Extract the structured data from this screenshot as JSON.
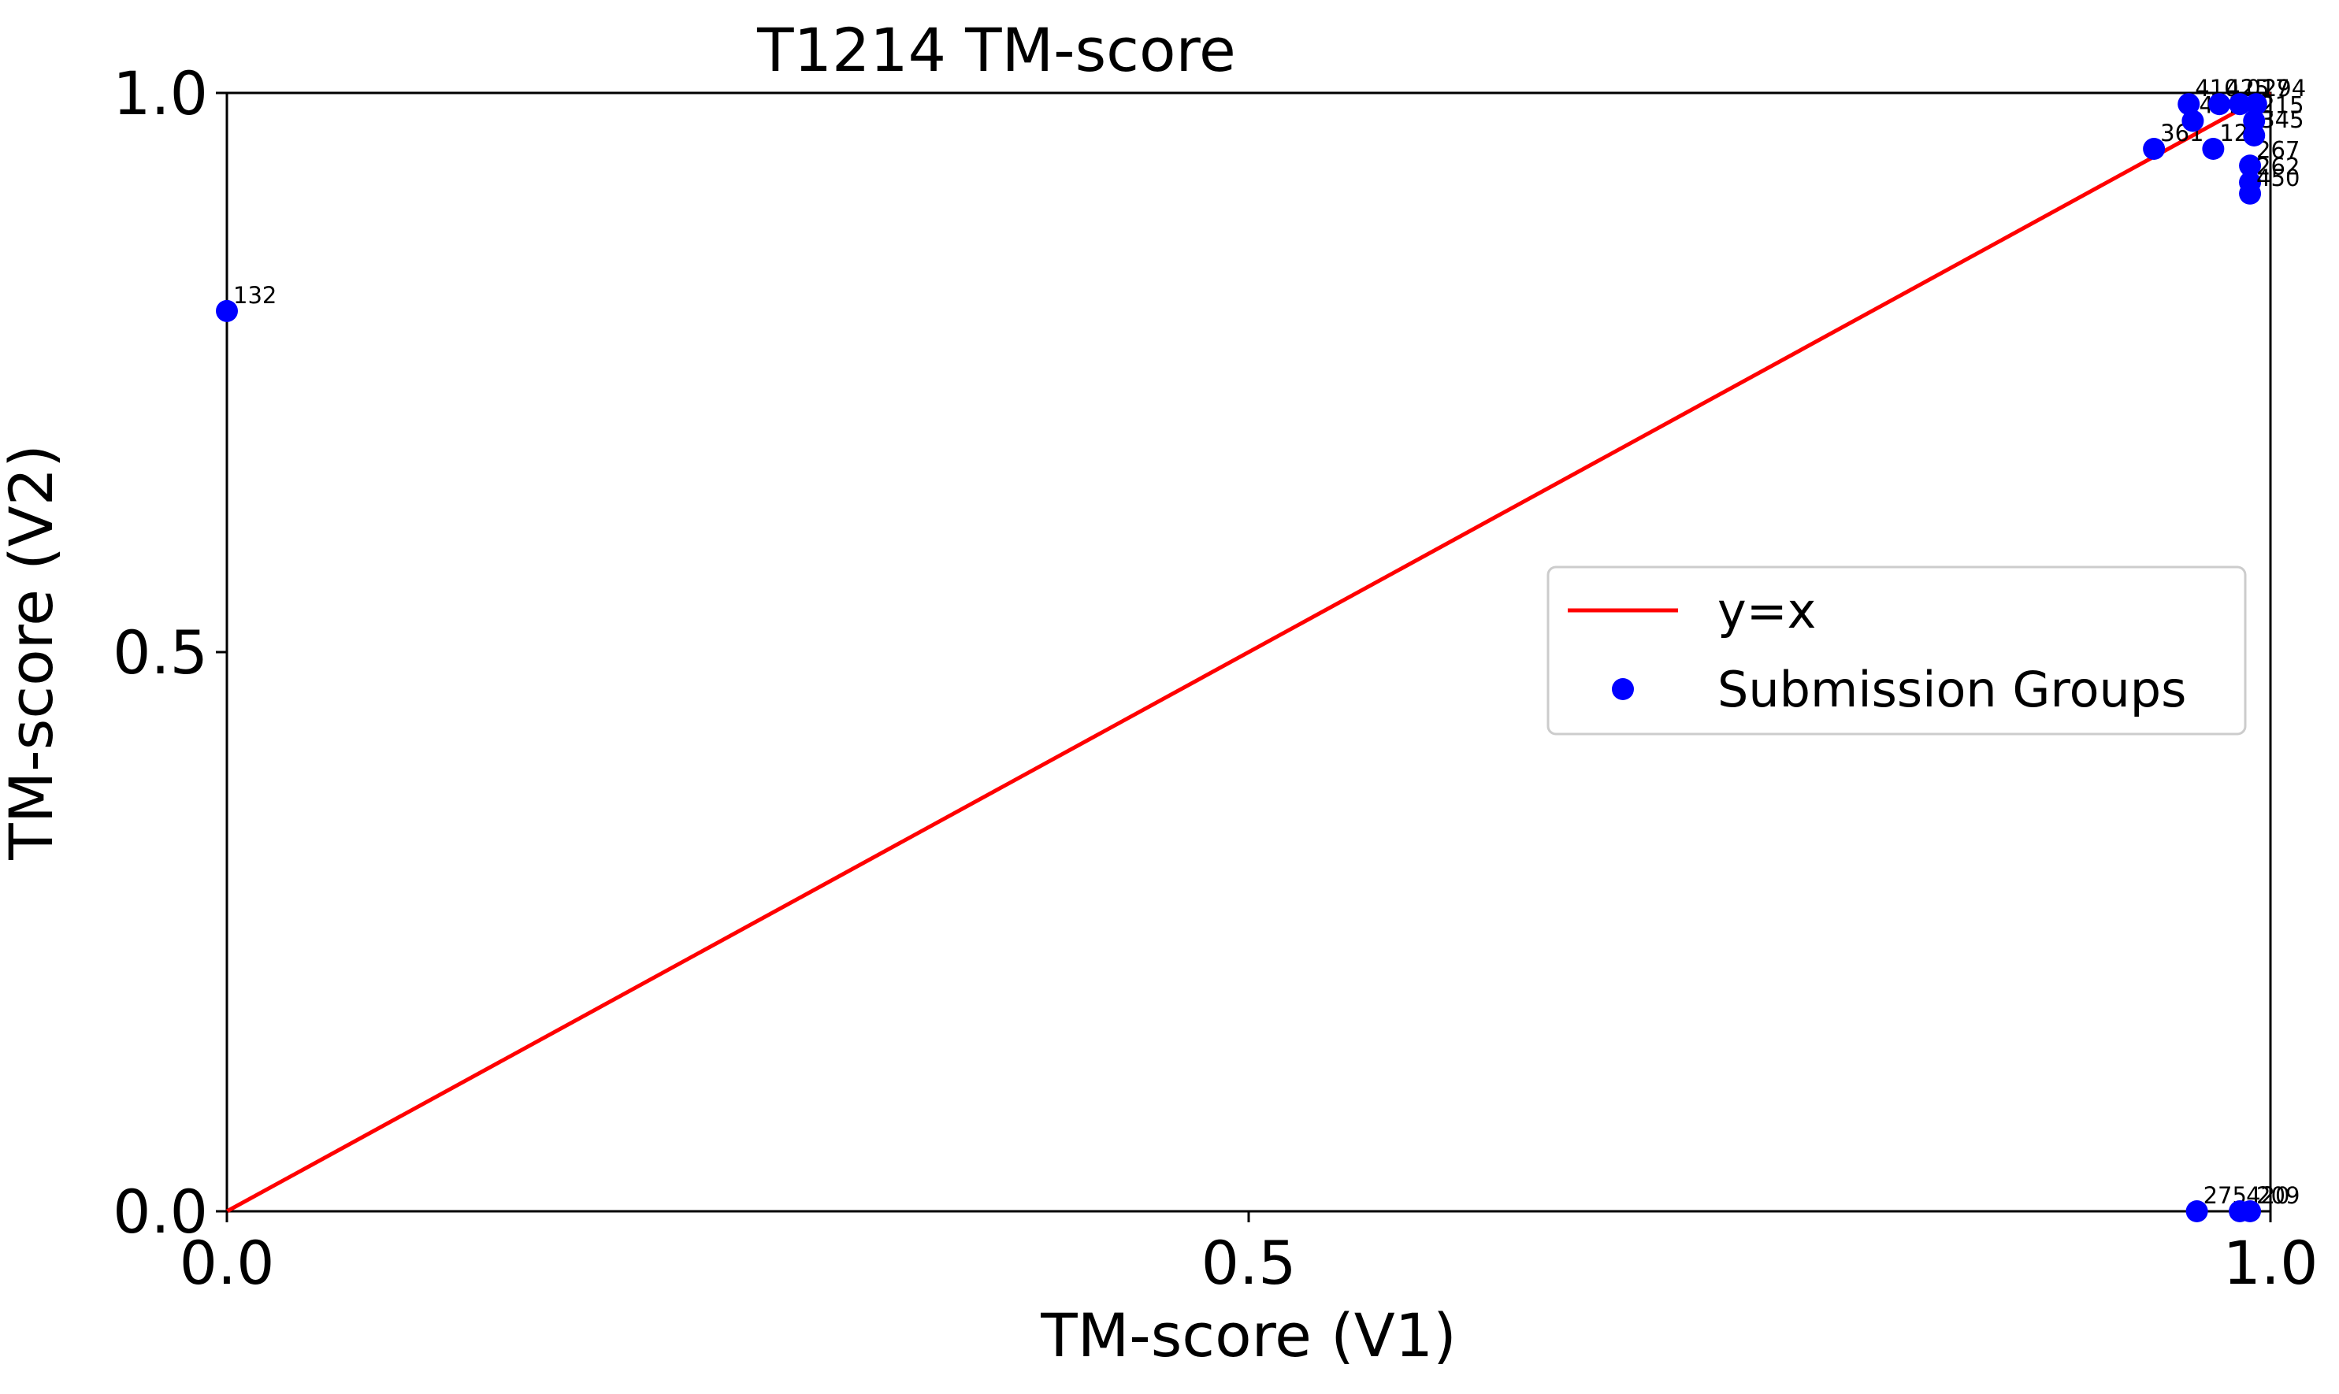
{
  "chart_data": {
    "type": "scatter",
    "title": "T1214 TM-score",
    "xlabel": "TM-score (V1)",
    "ylabel": "TM-score (V2)",
    "xlim": [
      0.0,
      1.0
    ],
    "ylim": [
      0.0,
      1.0
    ],
    "xticks": [
      "0.0",
      "0.5",
      "1.0"
    ],
    "yticks": [
      "0.0",
      "0.5",
      "1.0"
    ],
    "grid": false,
    "legend": {
      "placement": "center-right",
      "entries": [
        {
          "label": "y=x",
          "kind": "line",
          "color": "#ff0000"
        },
        {
          "label": "Submission Groups",
          "kind": "marker",
          "color": "#0000ff"
        }
      ]
    },
    "reference_line": {
      "name": "y=x",
      "color": "#ff0000",
      "points": [
        [
          0.0,
          0.0
        ],
        [
          1.0,
          1.0
        ]
      ]
    },
    "series": [
      {
        "name": "Submission Groups",
        "color": "#0000ff",
        "points": [
          {
            "x": 0.0,
            "y": 0.805,
            "label": "132"
          },
          {
            "x": 0.943,
            "y": 0.95,
            "label": "361"
          },
          {
            "x": 0.962,
            "y": 0.975,
            "label": "461"
          },
          {
            "x": 0.96,
            "y": 0.99,
            "label": "410"
          },
          {
            "x": 0.972,
            "y": 0.95,
            "label": "120"
          },
          {
            "x": 0.99,
            "y": 0.935,
            "label": "267"
          },
          {
            "x": 0.99,
            "y": 0.92,
            "label": "262"
          },
          {
            "x": 0.99,
            "y": 0.91,
            "label": "450"
          },
          {
            "x": 0.992,
            "y": 0.962,
            "label": "345"
          },
          {
            "x": 0.992,
            "y": 0.975,
            "label": "215"
          },
          {
            "x": 0.975,
            "y": 0.99,
            "label": "425"
          },
          {
            "x": 0.985,
            "y": 0.99,
            "label": "017"
          },
          {
            "x": 0.993,
            "y": 0.99,
            "label": "294"
          },
          {
            "x": 0.964,
            "y": 0.0,
            "label": "275"
          },
          {
            "x": 0.985,
            "y": 0.0,
            "label": "420"
          },
          {
            "x": 0.99,
            "y": 0.0,
            "label": "209"
          }
        ]
      }
    ]
  }
}
